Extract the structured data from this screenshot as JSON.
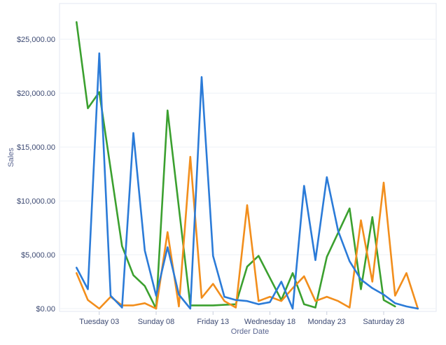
{
  "chart_data": {
    "type": "line",
    "title": "",
    "xlabel": "Order Date",
    "ylabel": "Sales",
    "ylim": [
      0,
      28000
    ],
    "y_ticks": [
      0,
      5000,
      10000,
      15000,
      20000,
      25000
    ],
    "y_tick_labels": [
      "$0.00",
      "$5,000.00",
      "$10,000.00",
      "$15,000.00",
      "$20,000.00",
      "$25,000.00"
    ],
    "x_ticks": [
      {
        "day": 3,
        "label": "Tuesday 03"
      },
      {
        "day": 8,
        "label": "Sunday 08"
      },
      {
        "day": 13,
        "label": "Friday 13"
      },
      {
        "day": 18,
        "label": "Wednesday 18"
      },
      {
        "day": 23,
        "label": "Monday 23"
      },
      {
        "day": 28,
        "label": "Saturday 28"
      }
    ],
    "xlim": [
      0,
      32
    ],
    "grid": true,
    "series": [
      {
        "color": "#3ba02f",
        "x": [
          1,
          2,
          3,
          5,
          6,
          7,
          8,
          9,
          11,
          13,
          14,
          15,
          16,
          17,
          19,
          20,
          21,
          22,
          23,
          25,
          26,
          27,
          28,
          29
        ],
        "values": [
          26600,
          18600,
          20100,
          5800,
          3100,
          2100,
          0,
          18400,
          300,
          300,
          350,
          400,
          3900,
          4900,
          800,
          3300,
          400,
          100,
          4800,
          9300,
          1800,
          8500,
          800,
          200
        ]
      },
      {
        "color": "#f28e1c",
        "x": [
          1,
          2,
          3,
          4,
          5,
          6,
          7,
          8,
          9,
          10,
          11,
          12,
          13,
          14,
          15,
          16,
          17,
          18,
          19,
          20,
          21,
          22,
          23,
          24,
          25,
          26,
          27,
          28,
          29,
          30,
          31
        ],
        "values": [
          3300,
          800,
          0,
          1100,
          300,
          300,
          500,
          0,
          7100,
          200,
          14100,
          1000,
          2300,
          700,
          100,
          9600,
          700,
          1100,
          700,
          1900,
          3000,
          700,
          1100,
          700,
          100,
          8200,
          2500,
          11700,
          1200,
          3300,
          0
        ]
      },
      {
        "color": "#2b7bd8",
        "x": [
          1,
          2,
          3,
          4,
          5,
          6,
          7,
          8,
          9,
          10,
          11,
          12,
          13,
          14,
          15,
          16,
          17,
          18,
          19,
          20,
          21,
          22,
          23,
          24,
          25,
          26,
          27,
          28,
          29,
          30,
          31
        ],
        "values": [
          3800,
          1800,
          23700,
          1200,
          100,
          16300,
          5400,
          1200,
          5700,
          1300,
          0,
          21500,
          4900,
          1100,
          800,
          700,
          400,
          600,
          2500,
          0,
          11400,
          4500,
          12200,
          7200,
          4400,
          2700,
          1900,
          1300,
          500,
          200,
          0
        ]
      }
    ]
  }
}
